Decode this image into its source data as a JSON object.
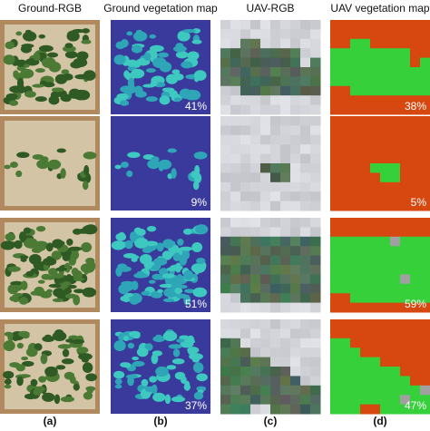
{
  "headers": [
    "Ground-RGB",
    "Ground vegetation map",
    "UAV-RGB",
    "UAV vegetation map"
  ],
  "rows": [
    {
      "ground_cover": "41%",
      "uav_cover": "38%"
    },
    {
      "ground_cover": "9%",
      "uav_cover": "5%"
    },
    {
      "ground_cover": "51%",
      "uav_cover": "59%"
    },
    {
      "ground_cover": "37%",
      "uav_cover": "47%"
    }
  ],
  "panel_labels": [
    "(a)",
    "(b)",
    "(c)",
    "(d)"
  ]
}
